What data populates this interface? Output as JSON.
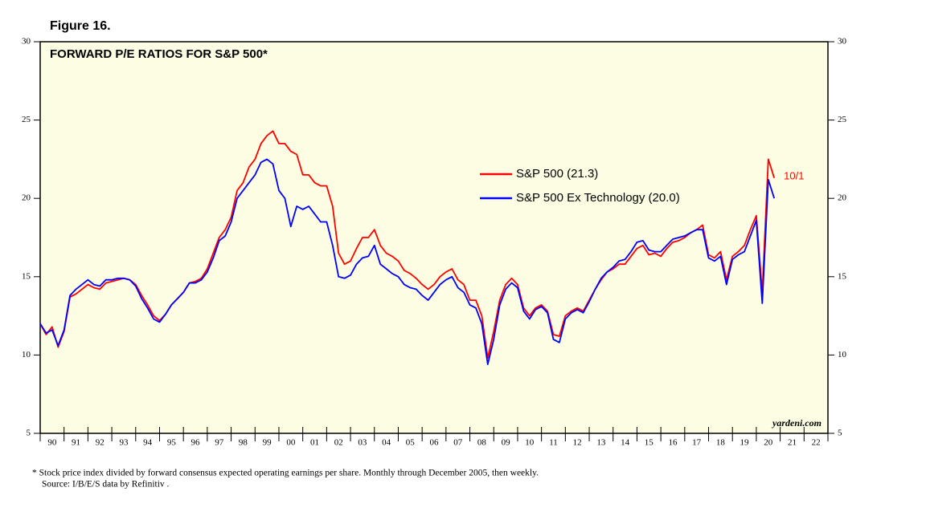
{
  "chart_data": {
    "type": "line",
    "figure_label": "Figure 16.",
    "title": "FORWARD P/E RATIOS FOR S&P 500*",
    "annotation": "10/1",
    "source_mark": "yardeni.com",
    "footnote": "*  Stock price index divided by forward consensus expected operating earnings per share. Monthly through December 2005, then weekly.",
    "source": "Source: I/B/E/S data by Refinitiv .",
    "background": "#fdfde3",
    "legend": "upper right",
    "x": [
      1990,
      1990.25,
      1990.5,
      1990.75,
      1991,
      1991.25,
      1991.5,
      1991.75,
      1992,
      1992.25,
      1992.5,
      1992.75,
      1993,
      1993.25,
      1993.5,
      1993.75,
      1994,
      1994.25,
      1994.5,
      1994.75,
      1995,
      1995.25,
      1995.5,
      1995.75,
      1996,
      1996.25,
      1996.5,
      1996.75,
      1997,
      1997.25,
      1997.5,
      1997.75,
      1998,
      1998.25,
      1998.5,
      1998.75,
      1999,
      1999.25,
      1999.5,
      1999.75,
      2000,
      2000.25,
      2000.5,
      2000.75,
      2001,
      2001.25,
      2001.5,
      2001.75,
      2002,
      2002.25,
      2002.5,
      2002.75,
      2003,
      2003.25,
      2003.5,
      2003.75,
      2004,
      2004.25,
      2004.5,
      2004.75,
      2005,
      2005.25,
      2005.5,
      2005.75,
      2006,
      2006.25,
      2006.5,
      2006.75,
      2007,
      2007.25,
      2007.5,
      2007.75,
      2008,
      2008.25,
      2008.5,
      2008.75,
      2009,
      2009.25,
      2009.5,
      2009.75,
      2010,
      2010.25,
      2010.5,
      2010.75,
      2011,
      2011.25,
      2011.5,
      2011.75,
      2012,
      2012.25,
      2012.5,
      2012.75,
      2013,
      2013.25,
      2013.5,
      2013.75,
      2014,
      2014.25,
      2014.5,
      2014.75,
      2015,
      2015.25,
      2015.5,
      2015.75,
      2016,
      2016.25,
      2016.5,
      2016.75,
      2017,
      2017.25,
      2017.5,
      2017.75,
      2018,
      2018.25,
      2018.5,
      2018.75,
      2019,
      2019.25,
      2019.5,
      2019.75,
      2020,
      2020.25,
      2020.5,
      2020.75
    ],
    "series": [
      {
        "name": "S&P 500 (21.3)",
        "color": "#ff0000",
        "values": [
          12.0,
          11.3,
          11.8,
          10.5,
          11.5,
          13.7,
          13.9,
          14.2,
          14.5,
          14.3,
          14.2,
          14.6,
          14.7,
          14.8,
          14.9,
          14.8,
          14.5,
          13.8,
          13.2,
          12.5,
          12.2,
          12.6,
          13.2,
          13.6,
          14.0,
          14.6,
          14.7,
          14.9,
          15.5,
          16.5,
          17.5,
          18.0,
          18.8,
          20.5,
          21.0,
          22.0,
          22.5,
          23.5,
          24.0,
          24.3,
          23.5,
          23.5,
          23.0,
          22.8,
          21.5,
          21.5,
          21.0,
          20.8,
          20.8,
          19.5,
          16.5,
          15.8,
          16.0,
          16.8,
          17.5,
          17.5,
          18.0,
          17.0,
          16.5,
          16.3,
          16.0,
          15.4,
          15.2,
          14.9,
          14.5,
          14.2,
          14.5,
          15.0,
          15.3,
          15.5,
          14.8,
          14.5,
          13.5,
          13.5,
          12.5,
          9.8,
          11.5,
          13.5,
          14.5,
          14.9,
          14.5,
          13.0,
          12.5,
          13.0,
          13.2,
          12.8,
          11.3,
          11.2,
          12.5,
          12.8,
          13.0,
          12.8,
          13.5,
          14.2,
          14.8,
          15.3,
          15.5,
          15.8,
          15.8,
          16.3,
          16.8,
          17.0,
          16.4,
          16.5,
          16.3,
          16.8,
          17.2,
          17.3,
          17.5,
          17.8,
          18.0,
          18.3,
          16.4,
          16.2,
          16.6,
          14.8,
          16.3,
          16.6,
          17.0,
          18.0,
          18.9,
          14.0,
          22.5,
          21.3
        ]
      },
      {
        "name": "S&P 500 Ex Technology (20.0)",
        "color": "#0000ff",
        "values": [
          12.0,
          11.4,
          11.6,
          10.6,
          11.6,
          13.8,
          14.2,
          14.5,
          14.8,
          14.5,
          14.4,
          14.8,
          14.8,
          14.9,
          14.9,
          14.8,
          14.4,
          13.6,
          13.0,
          12.3,
          12.1,
          12.6,
          13.2,
          13.6,
          14.0,
          14.6,
          14.6,
          14.8,
          15.3,
          16.2,
          17.3,
          17.6,
          18.5,
          20.0,
          20.5,
          21.0,
          21.5,
          22.3,
          22.5,
          22.2,
          20.5,
          20.0,
          18.2,
          19.5,
          19.3,
          19.5,
          19.0,
          18.5,
          18.5,
          17.0,
          15.0,
          14.9,
          15.1,
          15.8,
          16.2,
          16.3,
          17.0,
          15.8,
          15.5,
          15.2,
          15.0,
          14.5,
          14.3,
          14.2,
          13.8,
          13.5,
          14.0,
          14.5,
          14.8,
          15.0,
          14.3,
          14.0,
          13.2,
          13.0,
          12.0,
          9.4,
          11.0,
          13.2,
          14.2,
          14.6,
          14.3,
          12.8,
          12.3,
          12.9,
          13.1,
          12.7,
          11.0,
          10.8,
          12.3,
          12.7,
          12.9,
          12.7,
          13.4,
          14.2,
          14.9,
          15.3,
          15.6,
          16.0,
          16.1,
          16.6,
          17.2,
          17.3,
          16.7,
          16.6,
          16.6,
          17.0,
          17.4,
          17.5,
          17.6,
          17.8,
          18.0,
          18.0,
          16.2,
          16.0,
          16.3,
          14.5,
          16.1,
          16.4,
          16.6,
          17.6,
          18.6,
          13.3,
          21.2,
          20.0
        ]
      }
    ],
    "xlim": [
      1990,
      2023
    ],
    "xticks": [
      {
        "value": 1990,
        "label": "90"
      },
      {
        "value": 1991,
        "label": "91"
      },
      {
        "value": 1992,
        "label": "92"
      },
      {
        "value": 1993,
        "label": "93"
      },
      {
        "value": 1994,
        "label": "94"
      },
      {
        "value": 1995,
        "label": "95"
      },
      {
        "value": 1996,
        "label": "96"
      },
      {
        "value": 1997,
        "label": "97"
      },
      {
        "value": 1998,
        "label": "98"
      },
      {
        "value": 1999,
        "label": "99"
      },
      {
        "value": 2000,
        "label": "00"
      },
      {
        "value": 2001,
        "label": "01"
      },
      {
        "value": 2002,
        "label": "02"
      },
      {
        "value": 2003,
        "label": "03"
      },
      {
        "value": 2004,
        "label": "04"
      },
      {
        "value": 2005,
        "label": "05"
      },
      {
        "value": 2006,
        "label": "06"
      },
      {
        "value": 2007,
        "label": "07"
      },
      {
        "value": 2008,
        "label": "08"
      },
      {
        "value": 2009,
        "label": "09"
      },
      {
        "value": 2010,
        "label": "10"
      },
      {
        "value": 2011,
        "label": "11"
      },
      {
        "value": 2012,
        "label": "12"
      },
      {
        "value": 2013,
        "label": "13"
      },
      {
        "value": 2014,
        "label": "14"
      },
      {
        "value": 2015,
        "label": "15"
      },
      {
        "value": 2016,
        "label": "16"
      },
      {
        "value": 2017,
        "label": "17"
      },
      {
        "value": 2018,
        "label": "18"
      },
      {
        "value": 2019,
        "label": "19"
      },
      {
        "value": 2020,
        "label": "20"
      },
      {
        "value": 2021,
        "label": "21"
      },
      {
        "value": 2022,
        "label": "22"
      }
    ],
    "ylim": [
      5,
      30
    ],
    "yticks": [
      5,
      10,
      15,
      20,
      25,
      30
    ]
  }
}
